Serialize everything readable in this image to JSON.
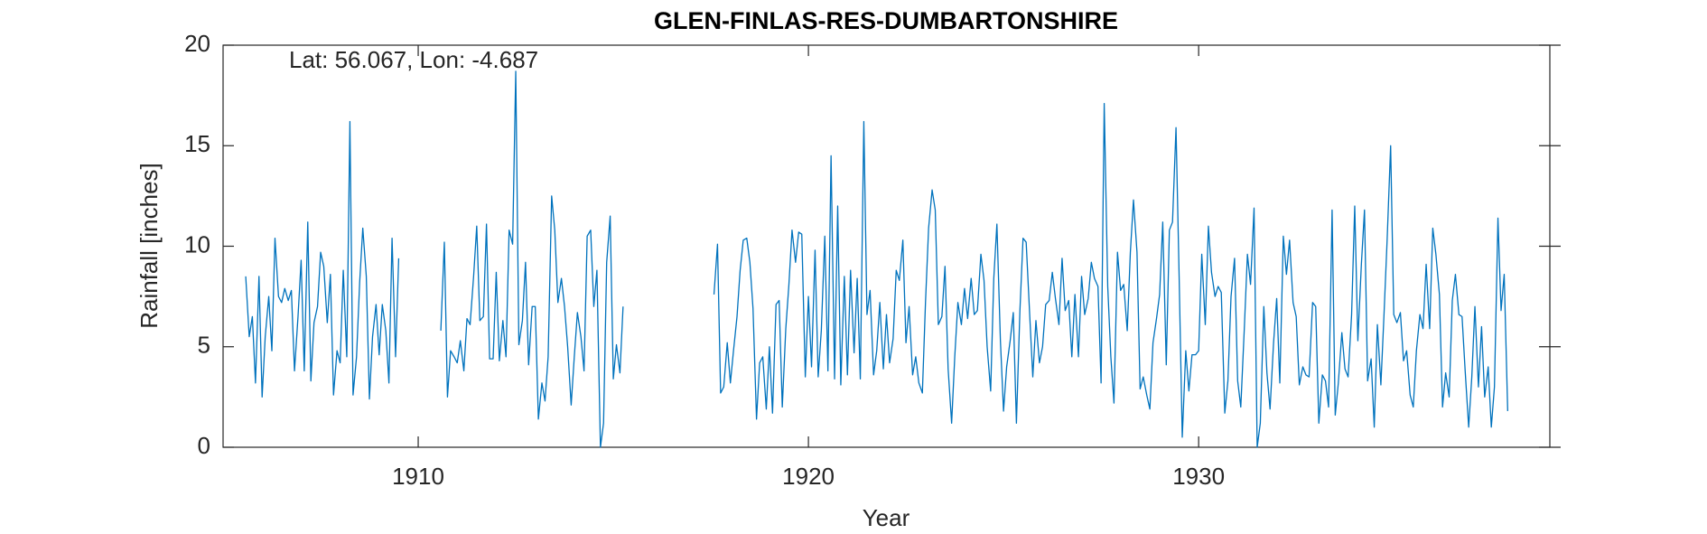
{
  "chart_data": {
    "type": "line",
    "title": "GLEN-FINLAS-RES-DUMBARTONSHIRE",
    "annotation": "Lat: 56.067, Lon: -4.687",
    "xlabel": "Year",
    "ylabel": "Rainfall [inches]",
    "color": "#0072bd",
    "xlim": [
      1905,
      1939
    ],
    "ylim": [
      0,
      20
    ],
    "xticks": [
      1910,
      1920,
      1930
    ],
    "yticks": [
      0,
      5,
      10,
      15,
      20
    ],
    "x": [
      1905.58,
      1905.67,
      1905.75,
      1905.83,
      1905.92,
      1906.0,
      1906.08,
      1906.17,
      1906.25,
      1906.33,
      1906.42,
      1906.5,
      1906.58,
      1906.67,
      1906.75,
      1906.83,
      1906.92,
      1907.0,
      1907.08,
      1907.17,
      1907.25,
      1907.33,
      1907.42,
      1907.5,
      1907.58,
      1907.67,
      1907.75,
      1907.83,
      1907.92,
      1908.0,
      1908.08,
      1908.17,
      1908.25,
      1908.33,
      1908.42,
      1908.5,
      1908.58,
      1908.67,
      1908.75,
      1908.83,
      1908.92,
      1909.0,
      1909.08,
      1909.17,
      1909.25,
      1909.33,
      1909.42,
      1909.5,
      1910.0,
      1910.58,
      1910.67,
      1910.75,
      1910.83,
      1910.92,
      1911.0,
      1911.08,
      1911.17,
      1911.25,
      1911.33,
      1911.42,
      1911.5,
      1911.58,
      1911.67,
      1911.75,
      1911.83,
      1911.92,
      1912.0,
      1912.08,
      1912.17,
      1912.25,
      1912.33,
      1912.42,
      1912.5,
      1912.58,
      1912.67,
      1912.75,
      1912.83,
      1912.92,
      1913.0,
      1913.08,
      1913.17,
      1913.25,
      1913.33,
      1913.42,
      1913.5,
      1913.58,
      1913.67,
      1913.75,
      1913.83,
      1913.92,
      1914.0,
      1914.08,
      1914.17,
      1914.25,
      1914.33,
      1914.42,
      1914.5,
      1914.58,
      1914.67,
      1914.75,
      1914.83,
      1914.92,
      1915.0,
      1915.08,
      1915.17,
      1915.25,
      1916.5,
      1917.58,
      1917.67,
      1917.75,
      1917.83,
      1917.92,
      1918.0,
      1918.08,
      1918.17,
      1918.25,
      1918.33,
      1918.42,
      1918.5,
      1918.58,
      1918.67,
      1918.75,
      1918.83,
      1918.92,
      1919.0,
      1919.08,
      1919.17,
      1919.25,
      1919.33,
      1919.42,
      1919.5,
      1919.58,
      1919.67,
      1919.75,
      1919.83,
      1919.92,
      1920.0,
      1920.08,
      1920.17,
      1920.25,
      1920.33,
      1920.42,
      1920.5,
      1920.58,
      1920.67,
      1920.75,
      1920.83,
      1920.92,
      1921.0,
      1921.08,
      1921.17,
      1921.25,
      1921.33,
      1921.42,
      1921.5,
      1921.58,
      1921.67,
      1921.75,
      1921.83,
      1921.92,
      1922.0,
      1922.08,
      1922.17,
      1922.25,
      1922.33,
      1922.42,
      1922.5,
      1922.58,
      1922.67,
      1922.75,
      1922.83,
      1922.92,
      1923.0,
      1923.08,
      1923.17,
      1923.25,
      1923.33,
      1923.42,
      1923.5,
      1923.58,
      1923.67,
      1923.75,
      1923.83,
      1923.92,
      1924.0,
      1924.08,
      1924.17,
      1924.25,
      1924.33,
      1924.42,
      1924.5,
      1924.58,
      1924.67,
      1924.75,
      1924.83,
      1924.92,
      1925.0,
      1925.08,
      1925.17,
      1925.25,
      1925.33,
      1925.42,
      1925.5,
      1925.58,
      1925.67,
      1925.75,
      1925.83,
      1925.92,
      1926.0,
      1926.08,
      1926.17,
      1926.25,
      1926.33,
      1926.42,
      1926.5,
      1926.58,
      1926.67,
      1926.75,
      1926.83,
      1926.92,
      1927.0,
      1927.08,
      1927.17,
      1927.25,
      1927.33,
      1927.42,
      1927.5,
      1927.58,
      1927.67,
      1927.75,
      1927.83,
      1927.92,
      1928.0,
      1928.08,
      1928.17,
      1928.25,
      1928.33,
      1928.42,
      1928.5,
      1928.58,
      1928.67,
      1928.75,
      1928.83,
      1928.92,
      1929.0,
      1929.08,
      1929.17,
      1929.25,
      1929.33,
      1929.42,
      1929.5,
      1929.58,
      1929.67,
      1929.75,
      1929.83,
      1929.92,
      1930.0,
      1930.08,
      1930.17,
      1930.25,
      1930.33,
      1930.42,
      1930.5,
      1930.58,
      1930.67,
      1930.75,
      1930.83,
      1930.92,
      1931.0,
      1931.08,
      1931.17,
      1931.25,
      1931.33,
      1931.42,
      1931.5,
      1931.58,
      1931.67,
      1931.75,
      1931.83,
      1931.92,
      1932.0,
      1932.08,
      1932.17,
      1932.25,
      1932.33,
      1932.42,
      1932.5,
      1932.58,
      1932.67,
      1932.75,
      1932.83,
      1932.92,
      1933.0,
      1933.08,
      1933.17,
      1933.25,
      1933.33,
      1933.42,
      1933.5,
      1933.58,
      1933.67,
      1933.75,
      1933.83,
      1933.92,
      1934.0,
      1934.08,
      1934.17,
      1934.25,
      1934.33,
      1934.42,
      1934.5,
      1934.58,
      1934.67,
      1934.75,
      1934.83,
      1934.92,
      1935.0,
      1935.08,
      1935.17,
      1935.25,
      1935.33,
      1935.42,
      1935.5,
      1935.58,
      1935.67,
      1935.75,
      1935.83,
      1935.92,
      1936.0,
      1936.08,
      1936.17,
      1936.25,
      1936.33,
      1936.42,
      1936.5,
      1936.58,
      1936.67,
      1936.75,
      1936.83,
      1936.92,
      1937.0,
      1937.08,
      1937.17,
      1937.25,
      1937.33,
      1937.42,
      1937.5,
      1937.58,
      1937.67,
      1937.75,
      1937.83,
      1937.92
    ],
    "values": [
      8.5,
      5.5,
      6.5,
      3.2,
      8.5,
      2.5,
      5.5,
      7.5,
      4.8,
      10.4,
      7.5,
      7.2,
      7.9,
      7.3,
      7.8,
      3.8,
      6.5,
      9.3,
      3.8,
      11.2,
      3.3,
      6.2,
      7,
      9.7,
      9,
      6.2,
      8.6,
      2.6,
      4.8,
      4.2,
      8.8,
      4.5,
      16.2,
      2.6,
      4.5,
      8.2,
      10.9,
      8.5,
      2.4,
      5.5,
      7.1,
      4.6,
      7.1,
      5.8,
      3.2,
      10.4,
      4.5,
      9.4,
      null,
      5.8,
      10.2,
      2.5,
      4.8,
      4.5,
      4.2,
      5.3,
      3.8,
      6.4,
      6.1,
      8.5,
      11,
      6.3,
      6.5,
      11.1,
      4.4,
      4.4,
      8.7,
      4.3,
      6.3,
      4.5,
      10.8,
      10.1,
      18.7,
      5.1,
      6.3,
      9.2,
      4.1,
      7,
      7,
      1.4,
      3.2,
      2.3,
      4.5,
      12.5,
      10.8,
      7.2,
      8.4,
      7,
      5,
      2.1,
      4.5,
      6.7,
      5.5,
      3.8,
      10.5,
      10.8,
      7,
      8.8,
      0,
      1.2,
      9.2,
      11.5,
      3.4,
      5.1,
      3.7,
      7,
      null,
      7.6,
      10.1,
      2.7,
      3,
      5.2,
      3.2,
      4.8,
      6.5,
      8.8,
      10.3,
      10.4,
      9.2,
      6.9,
      1.4,
      4.2,
      4.5,
      1.9,
      5,
      1.7,
      7.1,
      7.3,
      2,
      5.9,
      8.1,
      10.8,
      9.2,
      10.7,
      10.6,
      3.5,
      7.5,
      4,
      9.8,
      3.5,
      5.8,
      10.5,
      3.8,
      14.5,
      3.4,
      12,
      3.1,
      8.5,
      3.6,
      8.8,
      4.7,
      8.4,
      3.4,
      16.2,
      6.6,
      7.8,
      3.6,
      4.8,
      7.2,
      3.9,
      6.6,
      4.2,
      5.4,
      8.8,
      8.3,
      10.3,
      5.2,
      7,
      3.6,
      4.5,
      3.2,
      2.7,
      7.2,
      10.9,
      12.8,
      11.8,
      6.1,
      6.5,
      9,
      3.9,
      1.2,
      4.5,
      7.2,
      6.1,
      7.9,
      6.4,
      8.4,
      6.6,
      6.8,
      9.6,
      8.3,
      5,
      2.8,
      8.4,
      11.1,
      5.3,
      1.8,
      4,
      5.3,
      6.7,
      1.2,
      6.8,
      10.4,
      10.2,
      6.6,
      3.5,
      6.3,
      4.2,
      5,
      7.1,
      7.3,
      8.7,
      7.4,
      6.1,
      9.4,
      6.8,
      7.3,
      4.5,
      7.6,
      4.5,
      8.5,
      6.6,
      7.4,
      9.2,
      8.4,
      8,
      3.2,
      17.1,
      8,
      4.5,
      2.2,
      9.7,
      7.8,
      8.1,
      5.8,
      9.7,
      12.3,
      9.7,
      2.9,
      3.5,
      2.6,
      1.9,
      5.2,
      6.4,
      7.6,
      11.2,
      4.1,
      10.8,
      11.2,
      15.9,
      8.5,
      0.5,
      4.8,
      2.8,
      4.6,
      4.6,
      4.8,
      9.6,
      6.1,
      11,
      8.7,
      7.5,
      8,
      7.7,
      1.7,
      3.3,
      7.5,
      9.4,
      3.3,
      2,
      5.9,
      9.6,
      8.1,
      11.9,
      0,
      1.2,
      7,
      3.7,
      1.9,
      5.2,
      7.4,
      3.2,
      10.5,
      8.6,
      10.3,
      7.2,
      6.5,
      3.1,
      4,
      3.6,
      3.5,
      7.2,
      7,
      1.2,
      3.6,
      3.3,
      2,
      11.8,
      1.6,
      3.2,
      5.7,
      3.9,
      3.5,
      6.6,
      12,
      5.3,
      9.1,
      11.8,
      3.3,
      4.4,
      1,
      6.1,
      3.1,
      6.6,
      10.3,
      15,
      6.6,
      6.2,
      6.7,
      4.3,
      4.8,
      2.6,
      2,
      4.8,
      6.6,
      5.9,
      9.1,
      5.9,
      10.9,
      9.6,
      7.6,
      2,
      3.7,
      2.5,
      7.3,
      8.6,
      6.6,
      6.5,
      3.8,
      1,
      3.5,
      7,
      3,
      6,
      2.5,
      4,
      1,
      3,
      11.4,
      6.8,
      8.6,
      1.8
    ]
  }
}
